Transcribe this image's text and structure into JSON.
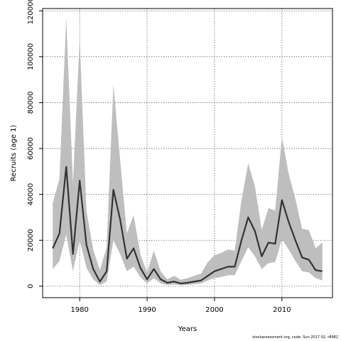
{
  "chart_data": {
    "type": "line",
    "xlabel": "Years",
    "ylabel": "Recruits (age 1)",
    "xlim": [
      1974.5,
      2017.5
    ],
    "ylim": [
      -5000,
      121000
    ],
    "x_ticks": [
      1980,
      1990,
      2000,
      2010
    ],
    "y_ticks": [
      0,
      20000,
      40000,
      60000,
      80000,
      100000,
      120000
    ],
    "grid": true,
    "colors": {
      "line": "#333333",
      "band": "#bebebe",
      "grid": "#444444"
    },
    "x": [
      1976,
      1977,
      1978,
      1979,
      1980,
      1981,
      1982,
      1983,
      1984,
      1985,
      1986,
      1987,
      1988,
      1989,
      1990,
      1991,
      1992,
      1993,
      1994,
      1995,
      1996,
      1997,
      1998,
      1999,
      2000,
      2001,
      2002,
      2003,
      2004,
      2005,
      2006,
      2007,
      2008,
      2009,
      2010,
      2011,
      2012,
      2013,
      2014,
      2015,
      2016
    ],
    "series": [
      {
        "values": [
          16500,
          23000,
          52000,
          14000,
          46000,
          18000,
          7500,
          2000,
          6500,
          42000,
          29000,
          12000,
          16500,
          8000,
          3000,
          7500,
          3000,
          1500,
          2000,
          1200,
          1500,
          2000,
          2500,
          4500,
          6500,
          7500,
          8500,
          8500,
          20000,
          30000,
          24000,
          13000,
          19000,
          18500,
          37500,
          28000,
          20000,
          12500,
          11500,
          7000,
          6500
        ]
      },
      {
        "name": "upper",
        "values": [
          36000,
          47000,
          117000,
          45000,
          108000,
          33000,
          16000,
          7000,
          17000,
          88000,
          55000,
          23000,
          31000,
          14000,
          6000,
          15500,
          6500,
          3000,
          4500,
          2800,
          3500,
          4500,
          5500,
          10500,
          13500,
          14500,
          16000,
          15500,
          37500,
          53500,
          43500,
          24500,
          34000,
          33000,
          65000,
          49000,
          38000,
          25000,
          24500,
          16500,
          19000
        ]
      },
      {
        "name": "lower",
        "values": [
          7500,
          11000,
          22500,
          6500,
          20000,
          8000,
          3000,
          500,
          2000,
          20000,
          14000,
          6500,
          8500,
          4000,
          1200,
          3500,
          1200,
          500,
          800,
          400,
          600,
          900,
          1200,
          2500,
          3500,
          4000,
          4800,
          4800,
          11000,
          17000,
          13000,
          7500,
          10000,
          10500,
          20500,
          16000,
          11000,
          6500,
          6000,
          3500,
          2500
        ]
      }
    ]
  },
  "footer": "stockassessment.org, code: Sun 2017 02, r8982"
}
